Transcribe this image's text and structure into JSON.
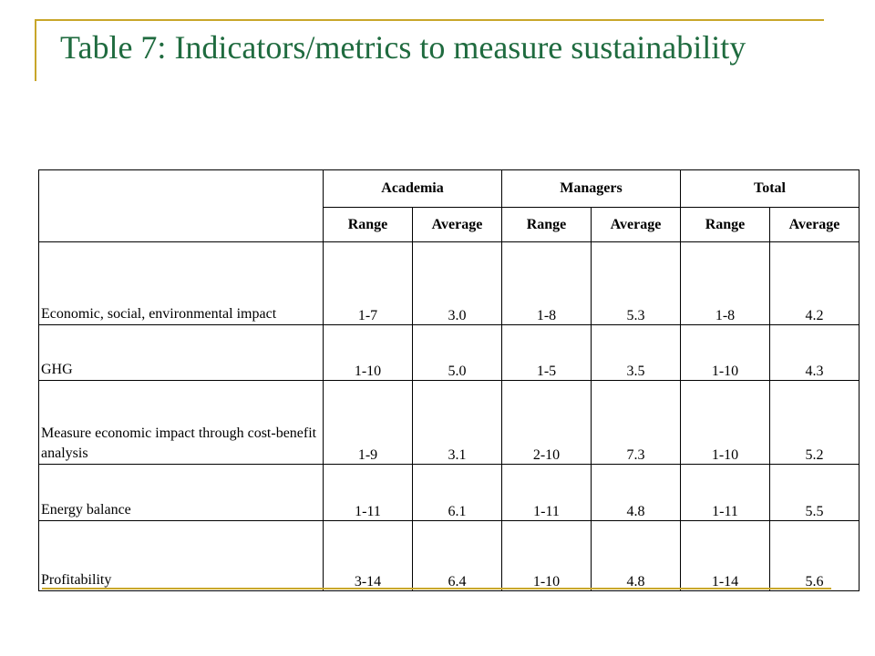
{
  "title": "Table 7: Indicators/metrics to measure sustainability",
  "colors": {
    "title": "#1f6b3f",
    "accent": "#c8a62a"
  },
  "table": {
    "groups": [
      "Academia",
      "Managers",
      "Total"
    ],
    "subheaders": [
      "Range",
      "Average",
      "Range",
      "Average",
      "Range",
      "Average"
    ],
    "rows": [
      {
        "label": "Economic, social, environmental impact",
        "cells": [
          "1-7",
          "3.0",
          "1-8",
          "5.3",
          "1-8",
          "4.2"
        ]
      },
      {
        "label": "GHG",
        "cells": [
          "1-10",
          "5.0",
          "1-5",
          "3.5",
          "1-10",
          "4.3"
        ]
      },
      {
        "label": "Measure economic impact through cost-benefit analysis",
        "cells": [
          "1-9",
          "3.1",
          "2-10",
          "7.3",
          "1-10",
          "5.2"
        ]
      },
      {
        "label": "Energy balance",
        "cells": [
          "1-11",
          "6.1",
          "1-11",
          "4.8",
          "1-11",
          "5.5"
        ]
      },
      {
        "label": "Profitability",
        "cells": [
          "3-14",
          "6.4",
          "1-10",
          "4.8",
          "1-14",
          "5.6"
        ]
      }
    ]
  }
}
